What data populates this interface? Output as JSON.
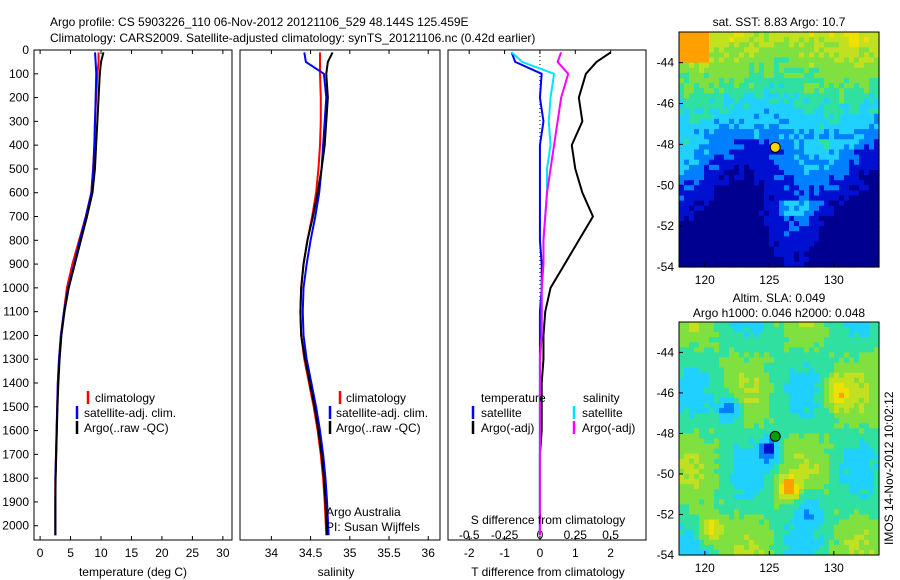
{
  "title": {
    "line1": "Argo profile: CS 5903226_110 06-Nov-2012 20121106_529 48.144S 125.459E",
    "line2": "Climatology: CARS2009. Satellite-adjusted climatology: synTS_20121106.nc (0.42d earlier)"
  },
  "colors": {
    "climatology": "#ff0000",
    "satellite": "#0000ff",
    "argo": "#000000",
    "s_satellite": "#00e5ff",
    "s_argo": "#ff00ff"
  },
  "depth_ticks": [
    0,
    100,
    200,
    300,
    400,
    500,
    600,
    700,
    800,
    900,
    1000,
    1100,
    1200,
    1300,
    1400,
    1500,
    1600,
    1700,
    1800,
    1900,
    2000
  ],
  "watermark": "IMOS 14-Nov-2012 10:02:12",
  "chart_data": [
    {
      "type": "line",
      "name": "temperature-profile",
      "xlabel": "temperature (deg C)",
      "xlim": [
        -1,
        31.5
      ],
      "ylim": [
        0,
        2060
      ],
      "xticks": [
        0,
        5,
        10,
        15,
        20,
        25,
        30
      ],
      "legend": [
        "climatology",
        "satellite-adj. clim.",
        "Argo(..raw -QC)"
      ],
      "series": [
        {
          "name": "climatology",
          "color": "#ff0000",
          "x": [
            9.6,
            9.6,
            9.4,
            9.2,
            9.0,
            8.9,
            8.7,
            8.4,
            7.5,
            6.4,
            5.3,
            4.4,
            3.9,
            3.4,
            3.1,
            2.9,
            2.8,
            2.7,
            2.6,
            2.5,
            2.5,
            2.5
          ],
          "y": [
            10,
            50,
            100,
            200,
            300,
            400,
            500,
            600,
            700,
            800,
            900,
            1000,
            1100,
            1200,
            1300,
            1400,
            1500,
            1600,
            1700,
            1800,
            1900,
            2040
          ]
        },
        {
          "name": "satellite-adj. clim.",
          "color": "#0000ff",
          "x": [
            9.0,
            9.1,
            9.2,
            9.1,
            9.0,
            8.9,
            8.7,
            8.4,
            7.5,
            6.5,
            5.6,
            4.6,
            3.9,
            3.4,
            3.1,
            2.9,
            2.8,
            2.7,
            2.6,
            2.5,
            2.5,
            2.5
          ],
          "y": [
            10,
            50,
            100,
            200,
            300,
            400,
            500,
            600,
            700,
            800,
            900,
            1000,
            1100,
            1200,
            1300,
            1400,
            1500,
            1600,
            1700,
            1800,
            1900,
            2040
          ]
        },
        {
          "name": "Argo(..raw -QC)",
          "color": "#000000",
          "x": [
            10.4,
            10.0,
            9.8,
            9.6,
            9.4,
            9.2,
            9.0,
            8.6,
            7.7,
            6.7,
            5.7,
            4.7,
            4.0,
            3.5,
            3.2,
            3.0,
            2.85,
            2.75,
            2.65,
            2.55,
            2.5,
            2.5
          ],
          "y": [
            10,
            50,
            100,
            200,
            300,
            400,
            500,
            600,
            700,
            800,
            900,
            1000,
            1100,
            1200,
            1300,
            1400,
            1500,
            1600,
            1700,
            1800,
            1900,
            2040
          ]
        }
      ]
    },
    {
      "type": "line",
      "name": "salinity-profile",
      "xlabel": "salinity",
      "xlim": [
        33.6,
        36.15
      ],
      "ylim": [
        0,
        2060
      ],
      "xticks": [
        34,
        34.5,
        35,
        35.5,
        36
      ],
      "legend": [
        "climatology",
        "satellite-adj. clim.",
        "Argo(..raw -QC)"
      ],
      "annotation": [
        "Argo Australia",
        "PI: Susan Wijffels"
      ],
      "series": [
        {
          "name": "climatology",
          "color": "#ff0000",
          "x": [
            34.62,
            34.62,
            34.62,
            34.63,
            34.63,
            34.62,
            34.6,
            34.57,
            34.52,
            34.46,
            34.41,
            34.38,
            34.37,
            34.38,
            34.42,
            34.48,
            34.54,
            34.59,
            34.63,
            34.66,
            34.68,
            34.7
          ],
          "y": [
            10,
            50,
            100,
            200,
            300,
            400,
            500,
            600,
            700,
            800,
            900,
            1000,
            1100,
            1200,
            1300,
            1400,
            1500,
            1600,
            1700,
            1800,
            1900,
            2040
          ]
        },
        {
          "name": "satellite-adj. clim.",
          "color": "#0000ff",
          "x": [
            34.4,
            34.42,
            34.65,
            34.68,
            34.66,
            34.64,
            34.62,
            34.59,
            34.54,
            34.48,
            34.43,
            34.39,
            34.38,
            34.39,
            34.43,
            34.49,
            34.55,
            34.6,
            34.64,
            34.67,
            34.69,
            34.71
          ],
          "y": [
            10,
            50,
            100,
            200,
            300,
            400,
            500,
            600,
            700,
            800,
            900,
            1000,
            1100,
            1200,
            1300,
            1400,
            1500,
            1600,
            1700,
            1800,
            1900,
            2040
          ]
        },
        {
          "name": "Argo(..raw -QC)",
          "color": "#000000",
          "x": [
            34.78,
            34.72,
            34.7,
            34.72,
            34.7,
            34.68,
            34.64,
            34.59,
            34.53,
            34.46,
            34.41,
            34.38,
            34.37,
            34.38,
            34.43,
            34.49,
            34.55,
            34.6,
            34.64,
            34.67,
            34.69,
            34.71
          ],
          "y": [
            10,
            50,
            100,
            200,
            300,
            400,
            500,
            600,
            700,
            800,
            900,
            1000,
            1100,
            1200,
            1300,
            1400,
            1500,
            1600,
            1700,
            1800,
            1900,
            2040
          ]
        }
      ]
    },
    {
      "type": "line",
      "name": "difference-profile",
      "xlabel": "T difference from climatology",
      "xlabel_top": "S difference from climatology",
      "xlim": [
        -2.6,
        3.0
      ],
      "ylim": [
        0,
        2060
      ],
      "xticks_bottom": [
        -2,
        -1,
        0,
        1,
        2
      ],
      "xticks_top": [
        "-0.5",
        "-0.25",
        "0",
        "0.25",
        "0.5"
      ],
      "legend": {
        "temperature": "temperature",
        "salinity": "salinity",
        "satellite": "satellite",
        "argo": "Argo(-adj)"
      },
      "series": [
        {
          "name": "T satellite",
          "color": "#0000ff",
          "x": [
            -0.8,
            -0.7,
            0.05,
            0.0,
            0.1,
            0.0,
            0.0,
            0.0,
            0.0,
            0.0,
            0.05,
            0.05,
            0.0,
            0.0,
            0.0,
            0.0,
            0.0,
            0.0,
            0.0,
            0.0,
            0.0,
            0.0
          ],
          "y": [
            10,
            50,
            100,
            200,
            300,
            400,
            500,
            600,
            700,
            800,
            900,
            1000,
            1100,
            1200,
            1300,
            1400,
            1500,
            1600,
            1700,
            1800,
            1900,
            2040
          ]
        },
        {
          "name": "T Argo(-adj)",
          "color": "#000000",
          "x": [
            2.0,
            1.6,
            1.3,
            1.1,
            1.2,
            0.9,
            1.0,
            1.2,
            1.5,
            1.1,
            0.7,
            0.3,
            0.15,
            0.1,
            0.1,
            0.05,
            0.05,
            0.05,
            0.0,
            0.0,
            0.0,
            0.0
          ],
          "y": [
            10,
            50,
            100,
            200,
            300,
            400,
            500,
            600,
            700,
            800,
            900,
            1000,
            1100,
            1200,
            1300,
            1400,
            1500,
            1600,
            1700,
            1800,
            1900,
            2040
          ]
        },
        {
          "name": "S satellite",
          "color": "#00e5ff",
          "x": [
            -0.8,
            -0.5,
            0.4,
            0.3,
            0.25,
            0.3,
            0.2,
            0.2,
            0.15,
            0.1,
            0.1,
            0.05,
            0.05,
            0.05,
            0.0,
            0.0,
            0.0,
            0.0,
            0.0,
            0.0,
            0.0,
            0.0
          ],
          "y": [
            10,
            50,
            100,
            200,
            300,
            400,
            500,
            600,
            700,
            800,
            900,
            1000,
            1100,
            1200,
            1300,
            1400,
            1500,
            1600,
            1700,
            1800,
            1900,
            2040
          ]
        },
        {
          "name": "S Argo(-adj)",
          "color": "#ff00ff",
          "x": [
            0.6,
            0.5,
            0.8,
            0.6,
            0.5,
            0.4,
            0.3,
            0.2,
            0.15,
            0.1,
            0.1,
            0.05,
            0.05,
            0.05,
            0.0,
            0.0,
            0.0,
            0.0,
            0.0,
            0.0,
            0.0,
            0.0
          ],
          "y": [
            10,
            50,
            100,
            200,
            300,
            400,
            500,
            600,
            700,
            800,
            900,
            1000,
            1100,
            1200,
            1300,
            1400,
            1500,
            1600,
            1700,
            1800,
            1900,
            2040
          ]
        }
      ]
    },
    {
      "type": "heatmap",
      "name": "sst-map",
      "title": "sat. SST: 8.83 Argo: 10.7",
      "xlim": [
        118,
        133.5
      ],
      "ylim": [
        -54,
        -42.5
      ],
      "xticks": [
        120,
        125,
        130
      ],
      "yticks": [
        -44,
        -46,
        -48,
        -50,
        -52,
        -54
      ],
      "marker": {
        "lon": 125.459,
        "lat": -48.144,
        "color": "#ffd400"
      }
    },
    {
      "type": "heatmap",
      "name": "sla-map",
      "title_line1": "Altim. SLA: 0.049",
      "title_line2": "Argo h1000: 0.046 h2000: 0.048",
      "xlim": [
        118,
        133.5
      ],
      "ylim": [
        -54,
        -42.5
      ],
      "xticks": [
        120,
        125,
        130
      ],
      "yticks": [
        -44,
        -46,
        -48,
        -50,
        -52,
        -54
      ],
      "marker": {
        "lon": 125.459,
        "lat": -48.144,
        "color": "#00a000"
      }
    }
  ]
}
